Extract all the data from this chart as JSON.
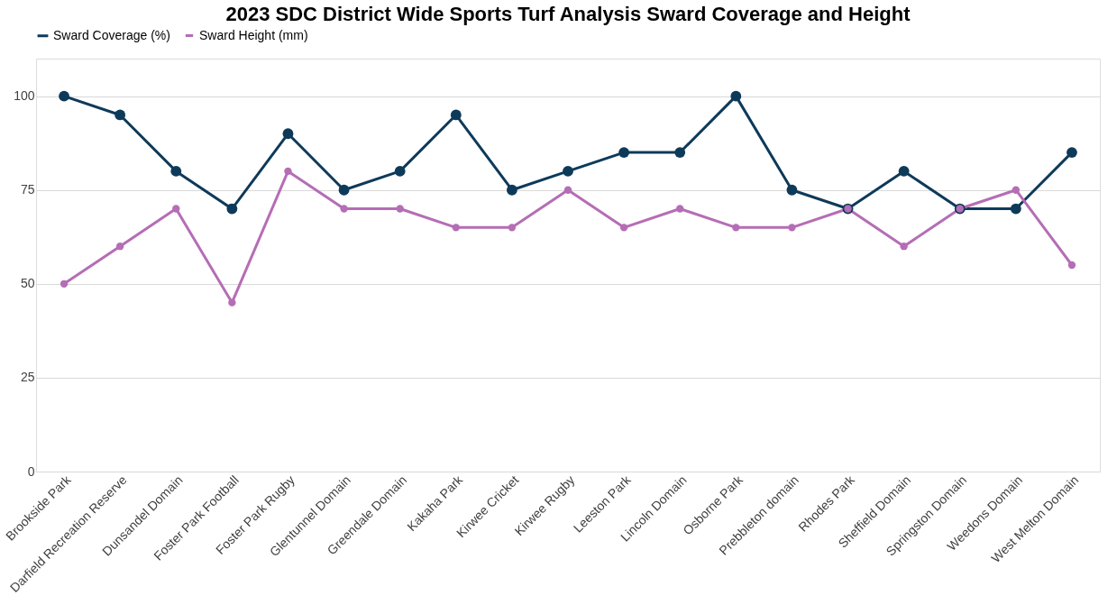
{
  "chart_data": {
    "type": "line",
    "title": "2023 SDC District Wide Sports Turf Analysis Sward Coverage and Height",
    "categories": [
      "Brookside Park",
      "Darfield Recreation Reserve",
      "Dunsandel Domain",
      "Foster Park Football",
      "Foster Park Rugby",
      "Glentunnel Domain",
      "Greendale Domain",
      "Kakaha Park",
      "Kirwee Cricket",
      "Kirwee Rugby",
      "Leeston Park",
      "Lincoln Domain",
      "Osborne Park",
      "Prebbleton domain",
      "Rhodes Park",
      "Sheffield Domain",
      "Springston Domain",
      "Weedons Domain",
      "West Melton Domain"
    ],
    "series": [
      {
        "name": "Sward Coverage (%)",
        "color": "#0e3a5a",
        "values": [
          100,
          95,
          80,
          70,
          90,
          75,
          80,
          95,
          75,
          80,
          85,
          85,
          100,
          75,
          70,
          80,
          70,
          70,
          85
        ]
      },
      {
        "name": "Sward Height (mm)",
        "color": "#b56db5",
        "values": [
          50,
          60,
          70,
          45,
          80,
          70,
          70,
          65,
          65,
          75,
          65,
          70,
          65,
          65,
          70,
          60,
          70,
          75,
          55
        ]
      }
    ],
    "ylim": [
      0,
      110
    ],
    "yticks": [
      0,
      25,
      50,
      75,
      100
    ],
    "grid": "y",
    "legend": "top",
    "marker": "circle",
    "line_style": "solid"
  }
}
